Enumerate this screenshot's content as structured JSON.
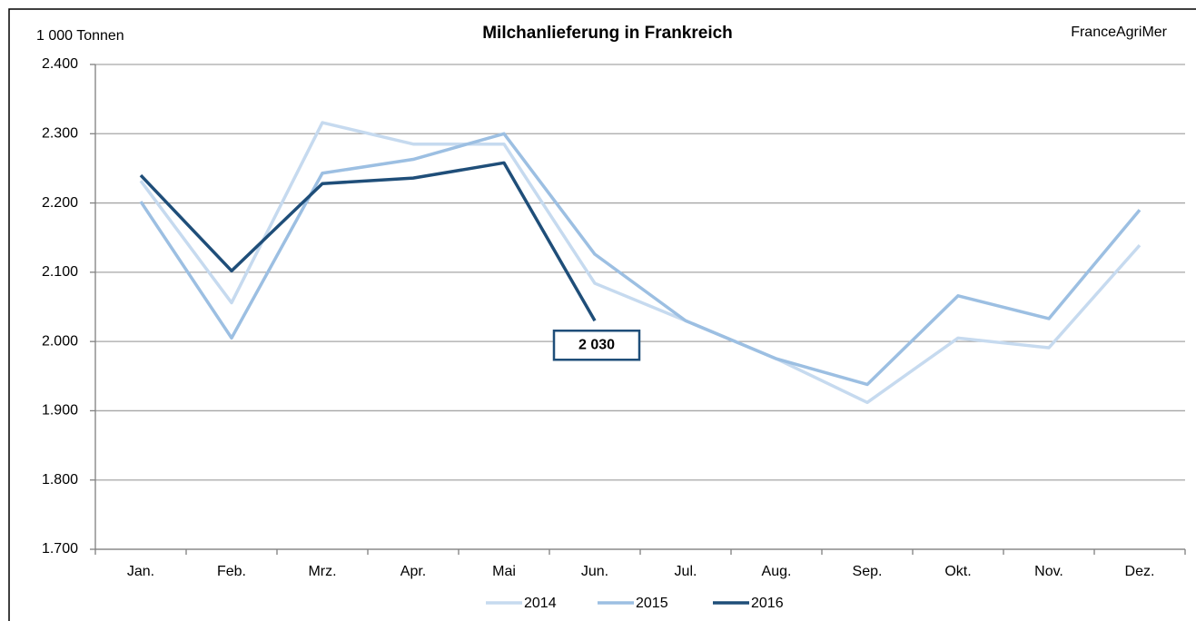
{
  "chart_data": {
    "type": "line",
    "title": "Milchanlieferung in Frankreich",
    "y_label": "1 000 Tonnen",
    "source": "FranceAgriMer",
    "categories": [
      "Jan.",
      "Feb.",
      "Mrz.",
      "Apr.",
      "Mai",
      "Jun.",
      "Jul.",
      "Aug.",
      "Sep.",
      "Okt.",
      "Nov.",
      "Dez."
    ],
    "series": [
      {
        "name": "2014",
        "color": "#c6daef",
        "values": [
          2232,
          2056,
          2316,
          2285,
          2285,
          2084,
          2030,
          1975,
          1912,
          2005,
          1991,
          2139
        ]
      },
      {
        "name": "2015",
        "color": "#9cbfe2",
        "values": [
          2202,
          2005,
          2243,
          2263,
          2300,
          2126,
          2030,
          1975,
          1938,
          2066,
          2033,
          2190
        ]
      },
      {
        "name": "2016",
        "color": "#1f4e79",
        "values": [
          2240,
          2102,
          2228,
          2236,
          2258,
          2030,
          null,
          null,
          null,
          null,
          null,
          null
        ],
        "value_labels": [
          null,
          null,
          null,
          null,
          null,
          "2 030",
          null,
          null,
          null,
          null,
          null,
          null
        ]
      }
    ],
    "ylim": [
      1700,
      2400
    ],
    "yticks": [
      {
        "value": 1700,
        "label": "1.700"
      },
      {
        "value": 1800,
        "label": "1.800"
      },
      {
        "value": 1900,
        "label": "1.900"
      },
      {
        "value": 2000,
        "label": "2.000"
      },
      {
        "value": 2100,
        "label": "2.100"
      },
      {
        "value": 2200,
        "label": "2.200"
      },
      {
        "value": 2300,
        "label": "2.300"
      },
      {
        "value": 2400,
        "label": "2.400"
      }
    ],
    "grid": true,
    "legend": "bottom"
  }
}
